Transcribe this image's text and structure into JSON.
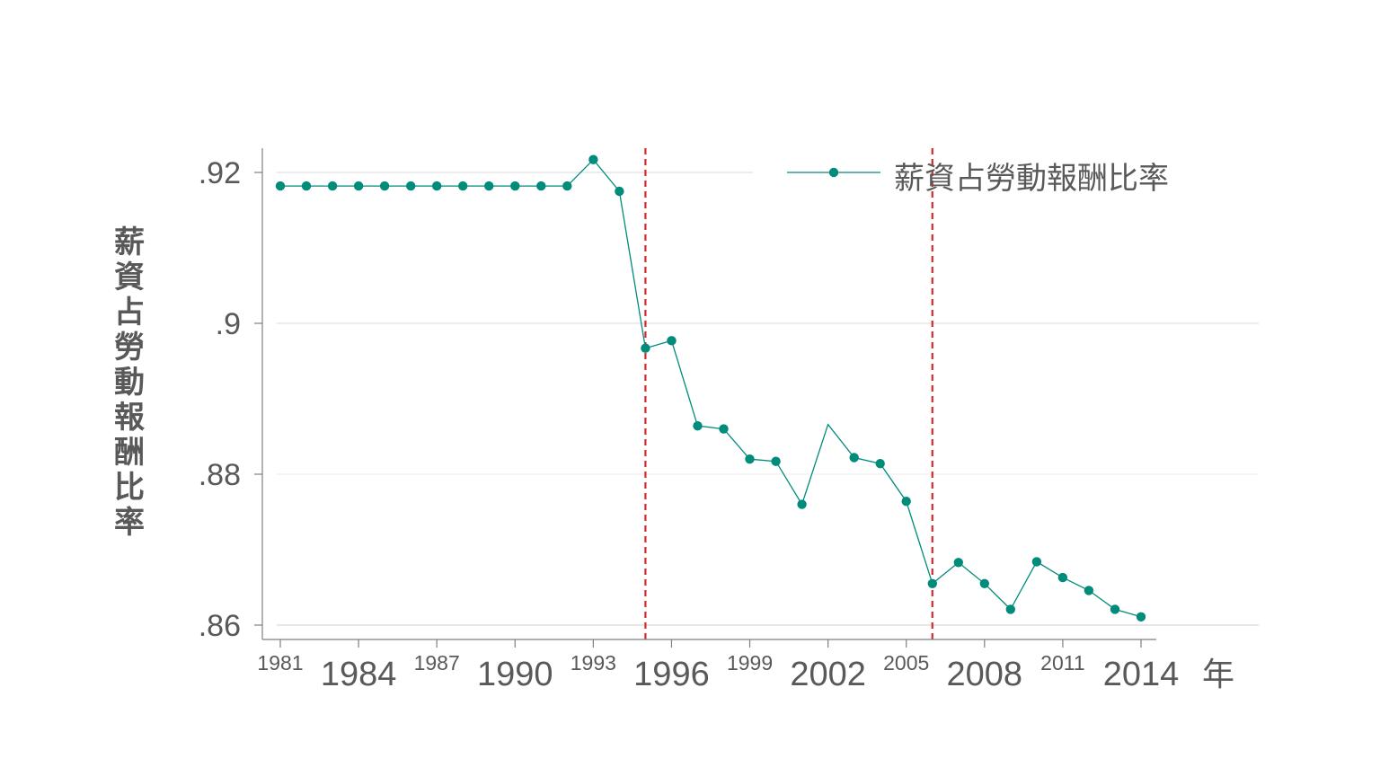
{
  "chart_data": {
    "type": "line",
    "ylabel": "薪資占勞動報酬比率",
    "xlabel": "年",
    "xlim": [
      1980.5,
      2018
    ],
    "ylim": [
      0.858,
      0.9234
    ],
    "y_ticks": [
      ".86",
      ".88",
      ".9",
      ".92"
    ],
    "y_tick_values": [
      0.86,
      0.88,
      0.9,
      0.92
    ],
    "x_ticks": [
      {
        "year": 1981,
        "label": "1981",
        "size": "small"
      },
      {
        "year": 1984,
        "label": "1984",
        "size": "large"
      },
      {
        "year": 1987,
        "label": "1987",
        "size": "small"
      },
      {
        "year": 1990,
        "label": "1990",
        "size": "large"
      },
      {
        "year": 1993,
        "label": "1993",
        "size": "small"
      },
      {
        "year": 1996,
        "label": "1996",
        "size": "large"
      },
      {
        "year": 1999,
        "label": "1999",
        "size": "small"
      },
      {
        "year": 2002,
        "label": "2002",
        "size": "large"
      },
      {
        "year": 2005,
        "label": "2005",
        "size": "small"
      },
      {
        "year": 2008,
        "label": "2008",
        "size": "large"
      },
      {
        "year": 2011,
        "label": "2011",
        "size": "small"
      },
      {
        "year": 2014,
        "label": "2014",
        "size": "large"
      }
    ],
    "grid": true,
    "legend_position": "top-right",
    "reference_lines": [
      1995,
      2006
    ],
    "colors": {
      "series": "#008b7a",
      "reference": "#d62728",
      "grid": "#d9d9d9",
      "axis": "#7f7f7f",
      "text": "#595959"
    },
    "series": [
      {
        "name": "薪資占勞動報酬比率",
        "x": [
          1981,
          1982,
          1983,
          1984,
          1985,
          1986,
          1987,
          1988,
          1989,
          1990,
          1991,
          1992,
          1993,
          1994,
          1995,
          1996,
          1997,
          1998,
          1999,
          2000,
          2001,
          2002,
          2003,
          2004,
          2005,
          2006,
          2007,
          2008,
          2009,
          2010,
          2011,
          2012,
          2013,
          2014
        ],
        "y": [
          0.9182,
          0.9182,
          0.9182,
          0.9182,
          0.9182,
          0.9182,
          0.9182,
          0.9182,
          0.9182,
          0.9182,
          0.9182,
          0.9182,
          0.9217,
          0.9175,
          0.8967,
          0.8977,
          0.8864,
          0.886,
          0.882,
          0.8817,
          0.876,
          0.8866,
          0.8822,
          0.8814,
          0.8764,
          0.8655,
          0.8683,
          0.8655,
          0.8621,
          0.8684,
          0.8663,
          0.8646,
          0.8621,
          0.8611
        ],
        "markers": [
          true,
          true,
          true,
          true,
          true,
          true,
          true,
          true,
          true,
          true,
          true,
          true,
          true,
          true,
          true,
          true,
          true,
          true,
          true,
          true,
          true,
          false,
          true,
          true,
          true,
          true,
          true,
          true,
          true,
          true,
          true,
          true,
          true,
          true
        ]
      }
    ]
  }
}
